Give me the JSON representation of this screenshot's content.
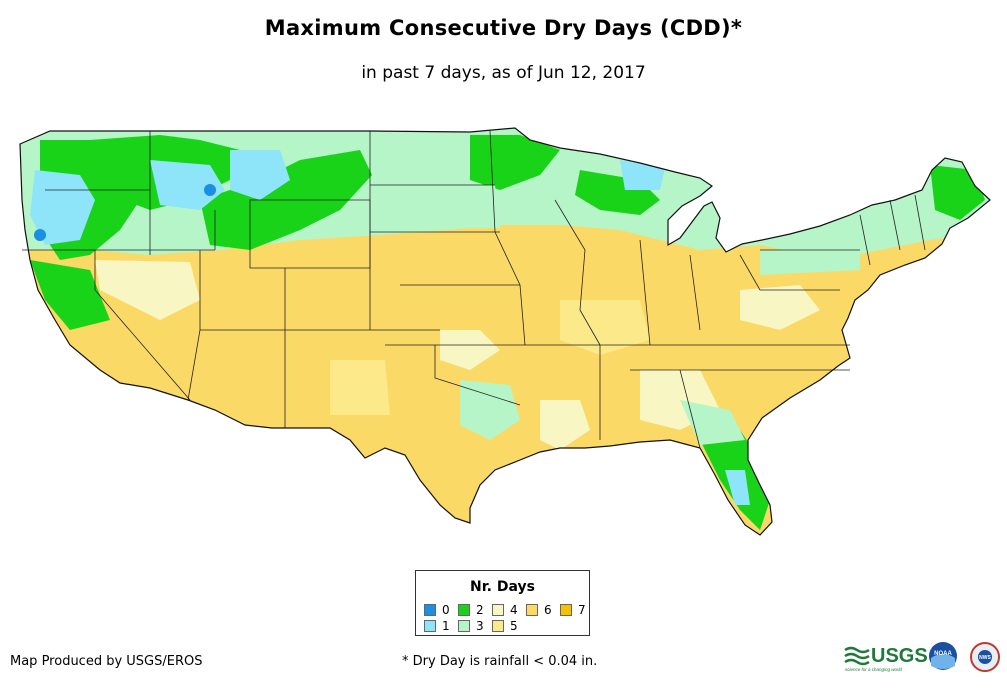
{
  "title": "Maximum Consecutive Dry Days (CDD)*",
  "subtitle": "in past 7 days, as of Jun 12, 2017",
  "legend": {
    "title": "Nr. Days",
    "items": [
      {
        "label": "0",
        "color": "#1a8fe3"
      },
      {
        "label": "1",
        "color": "#8ee5f9"
      },
      {
        "label": "2",
        "color": "#19d319"
      },
      {
        "label": "3",
        "color": "#b5f5c8"
      },
      {
        "label": "4",
        "color": "#f8f7c4"
      },
      {
        "label": "5",
        "color": "#fbe98a"
      },
      {
        "label": "6",
        "color": "#fbd967"
      },
      {
        "label": "7",
        "color": "#f8c000"
      }
    ]
  },
  "footer": {
    "producer": "Map Produced by USGS/EROS",
    "note": "* Dry Day is rainfall < 0.04 in."
  },
  "logos": {
    "usgs": "USGS",
    "usgs_tagline": "science for a changing world",
    "noaa": "NOAA",
    "nws": "NWS"
  }
}
